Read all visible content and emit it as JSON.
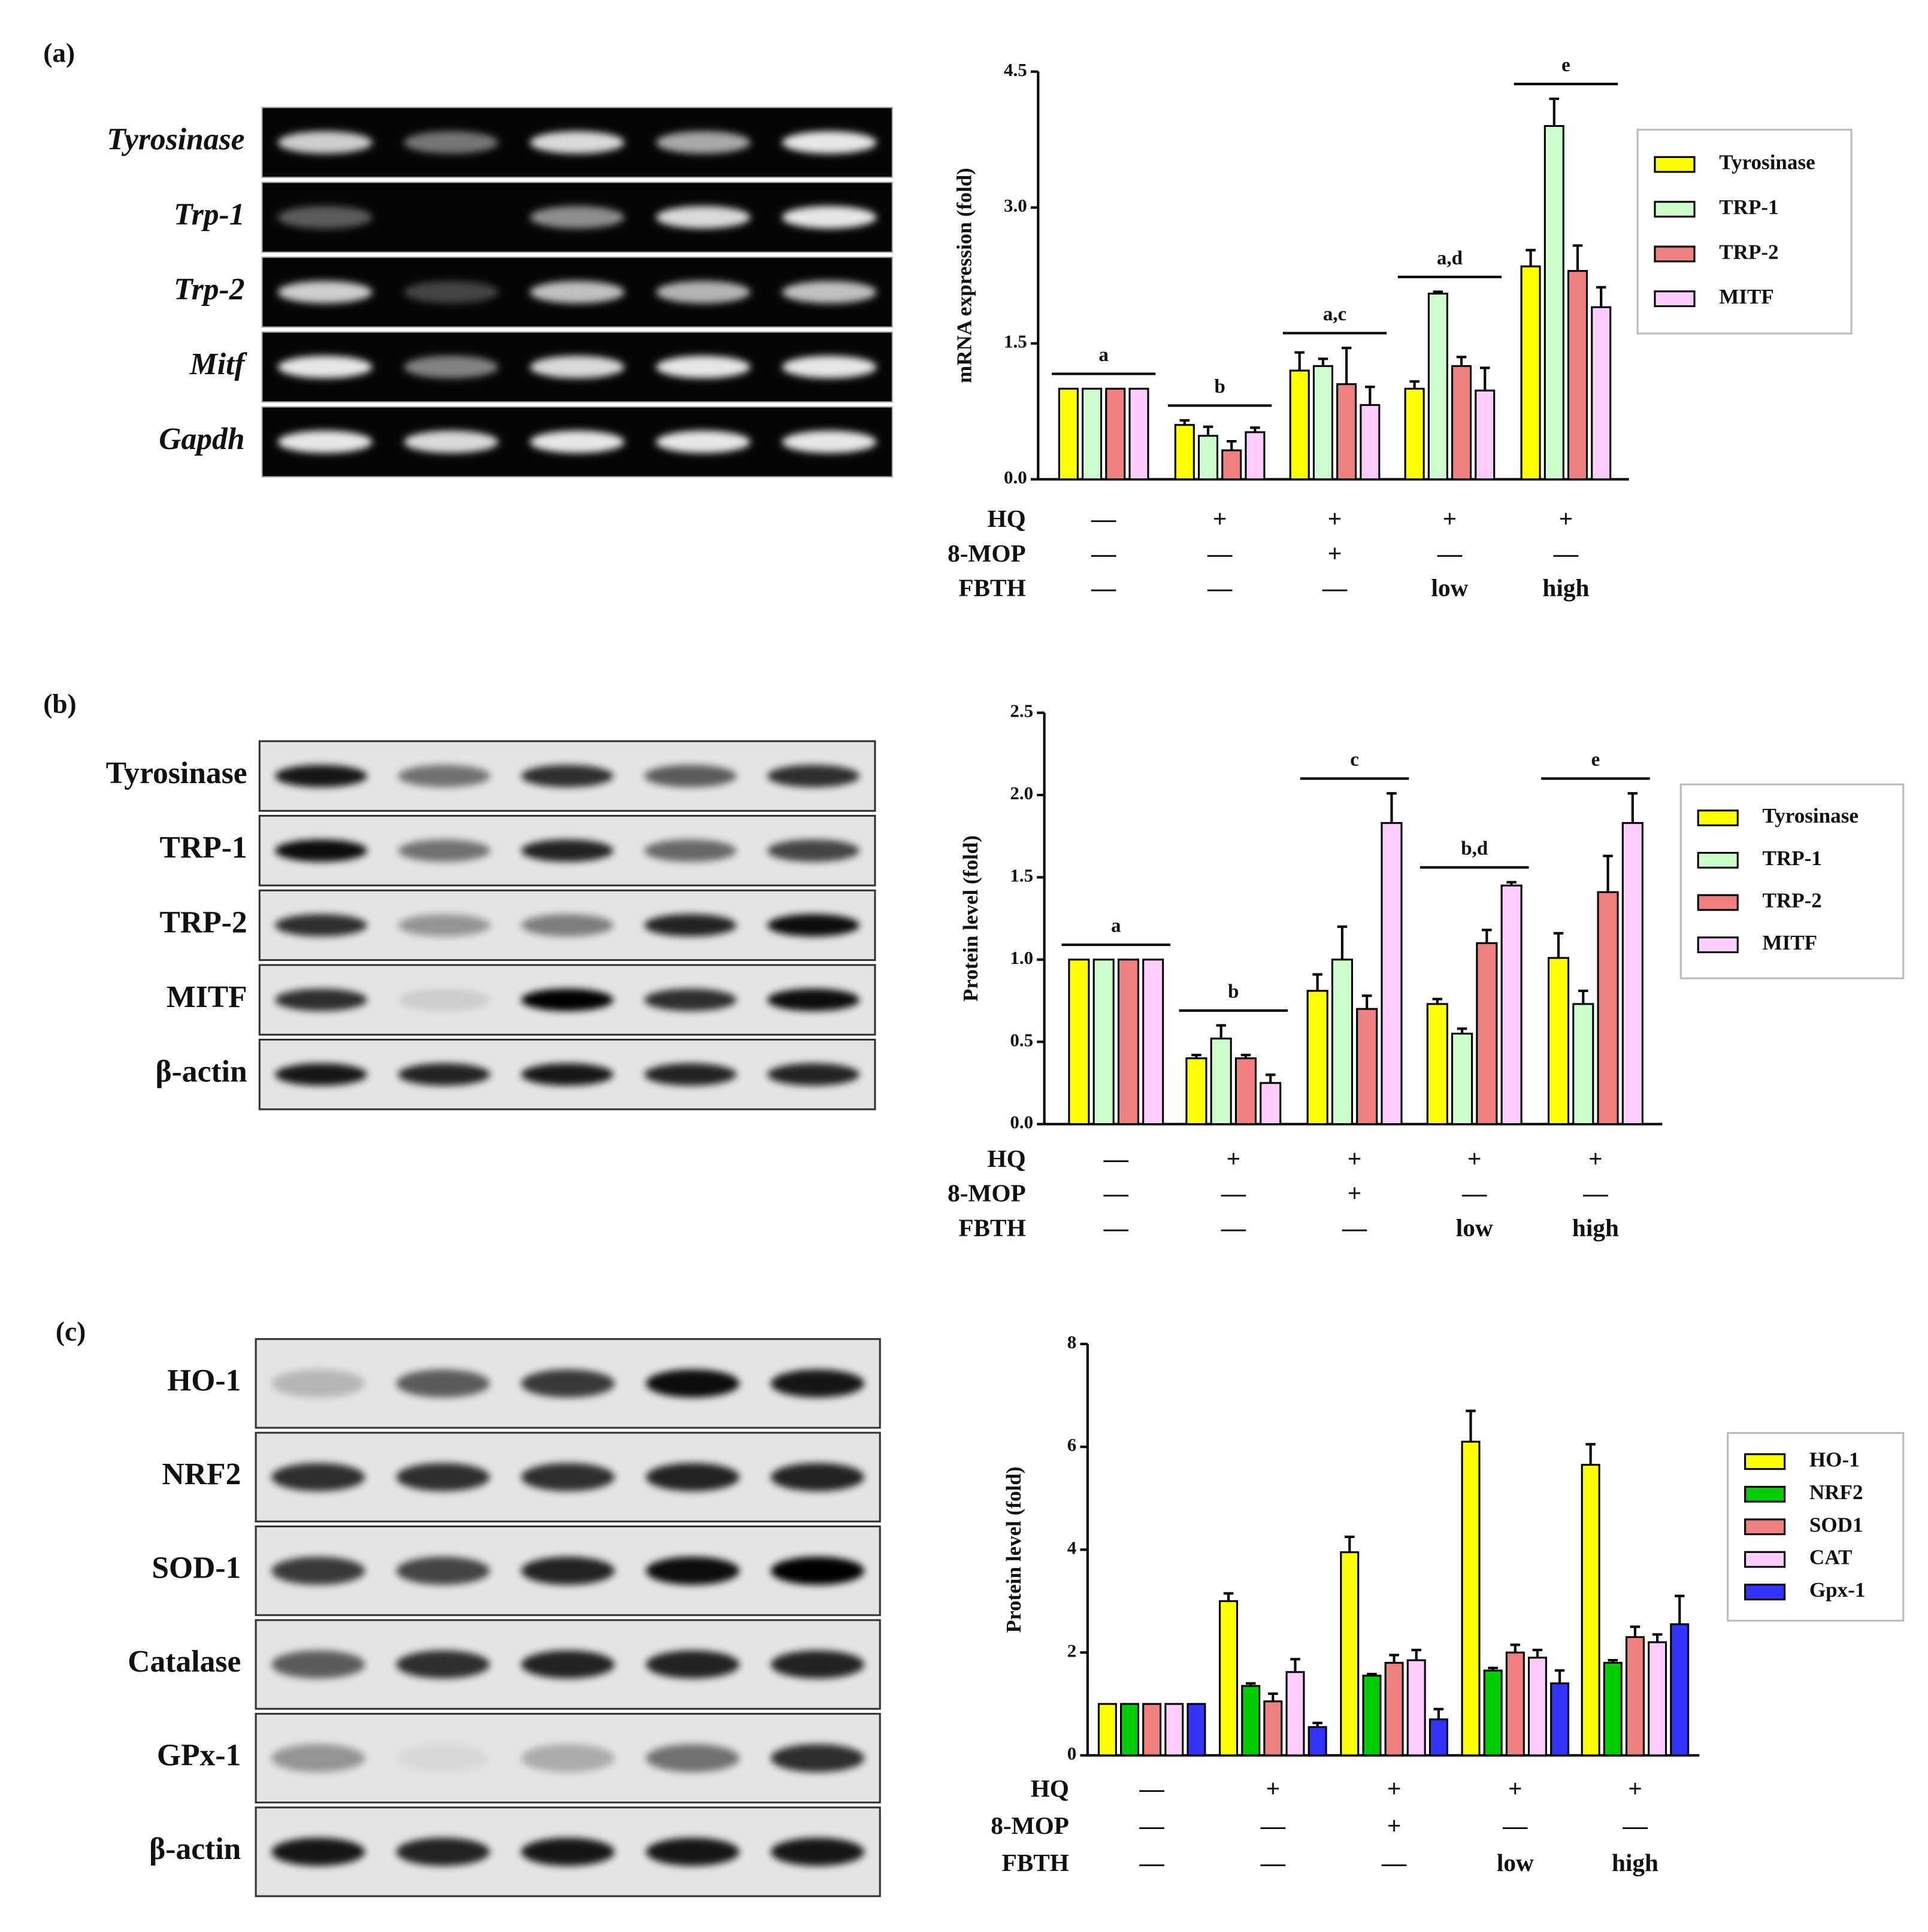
{
  "panels": [
    {
      "label": "(a)",
      "blots": [
        "Tyrosinase",
        "Trp-1",
        "Trp-2",
        "Mitf",
        "Gapdh"
      ]
    },
    {
      "label": "(b)",
      "blots": [
        "Tyrosinase",
        "TRP-1",
        "TRP-2",
        "MITF",
        "β-actin"
      ]
    },
    {
      "label": "(c)",
      "blots": [
        "HO-1",
        "NRF2",
        "SOD-1",
        "Catalase",
        "GPx-1",
        "β-actin"
      ]
    }
  ],
  "chart_data": [
    {
      "type": "bar",
      "y_label": "mRNA expression (fold)",
      "ylim": [
        0,
        4.5
      ],
      "yticks": [
        {
          "value": 0,
          "label": "0.0"
        },
        1.5,
        {
          "value": 3,
          "label": "3.0"
        },
        4.5
      ],
      "conditions": [
        {
          "name": "HQ",
          "values": [
            "—",
            "+",
            "+",
            "+",
            "+"
          ]
        },
        {
          "name": "8-MOP",
          "values": [
            "—",
            "—",
            "+",
            "—",
            "—"
          ]
        },
        {
          "name": "FBTH",
          "values": [
            "—",
            "—",
            "—",
            "low",
            "high"
          ]
        }
      ],
      "annotations": [
        "a",
        "b",
        "a,c",
        "a,d",
        "e"
      ],
      "series": [
        {
          "name": "Tyrosinase",
          "color": "#ffff00",
          "values": [
            1,
            0.6,
            1.2,
            1.0,
            2.35
          ],
          "errors": [
            0,
            0.05,
            0.2,
            0.08,
            0.18
          ]
        },
        {
          "name": "TRP-1",
          "color": "#ccffcc",
          "values": [
            1,
            0.48,
            1.25,
            2.05,
            3.9
          ],
          "errors": [
            0,
            0.1,
            0.08,
            0.02,
            0.3
          ]
        },
        {
          "name": "TRP-2",
          "color": "#f08080",
          "values": [
            1,
            0.32,
            1.05,
            1.25,
            2.3
          ],
          "errors": [
            0,
            0.1,
            0.4,
            0.1,
            0.28
          ]
        },
        {
          "name": "MITF",
          "color": "#ffccff",
          "values": [
            1,
            0.52,
            0.82,
            0.98,
            1.9
          ],
          "errors": [
            0,
            0.05,
            0.2,
            0.25,
            0.22
          ]
        }
      ]
    },
    {
      "type": "bar",
      "y_label": "Protein level (fold)",
      "ylim": [
        0,
        2.5
      ],
      "yticks": [
        {
          "value": 0,
          "label": "0.0"
        },
        0.5,
        {
          "value": 1,
          "label": "1.0"
        },
        1.5,
        {
          "value": 2,
          "label": "2.0"
        },
        2.5
      ],
      "conditions": [
        {
          "name": "HQ",
          "values": [
            "—",
            "+",
            "+",
            "+",
            "+"
          ]
        },
        {
          "name": "8-MOP",
          "values": [
            "—",
            "—",
            "+",
            "—",
            "—"
          ]
        },
        {
          "name": "FBTH",
          "values": [
            "—",
            "—",
            "—",
            "low",
            "high"
          ]
        }
      ],
      "annotations": [
        "a",
        "b",
        "c",
        "b,d",
        "e"
      ],
      "series": [
        {
          "name": "Tyrosinase",
          "color": "#ffff00",
          "values": [
            1,
            0.4,
            0.81,
            0.73,
            1.01
          ],
          "errors": [
            0,
            0.02,
            0.1,
            0.03,
            0.15
          ]
        },
        {
          "name": "TRP-1",
          "color": "#ccffcc",
          "values": [
            1,
            0.52,
            1.0,
            0.55,
            0.73
          ],
          "errors": [
            0,
            0.08,
            0.2,
            0.03,
            0.08
          ]
        },
        {
          "name": "TRP-2",
          "color": "#f08080",
          "values": [
            1,
            0.4,
            0.7,
            1.1,
            1.41
          ],
          "errors": [
            0,
            0.02,
            0.08,
            0.08,
            0.22
          ]
        },
        {
          "name": "MITF",
          "color": "#ffccff",
          "values": [
            1,
            0.25,
            1.83,
            1.45,
            1.83
          ],
          "errors": [
            0,
            0.05,
            0.18,
            0.02,
            0.18
          ]
        }
      ]
    },
    {
      "type": "bar",
      "y_label": "Protein level (fold)",
      "ylim": [
        0,
        8
      ],
      "yticks": [
        0,
        2,
        4,
        6,
        8
      ],
      "conditions": [
        {
          "name": "HQ",
          "values": [
            "—",
            "+",
            "+",
            "+",
            "+"
          ]
        },
        {
          "name": "8-MOP",
          "values": [
            "—",
            "—",
            "+",
            "—",
            "—"
          ]
        },
        {
          "name": "FBTH",
          "values": [
            "—",
            "—",
            "—",
            "low",
            "high"
          ]
        }
      ],
      "series": [
        {
          "name": "HO-1",
          "color": "#ffff00",
          "values": [
            1,
            3.0,
            3.95,
            6.1,
            5.65
          ],
          "errors": [
            0,
            0.15,
            0.3,
            0.6,
            0.4
          ]
        },
        {
          "name": "NRF2",
          "color": "#00cc00",
          "values": [
            1,
            1.35,
            1.55,
            1.65,
            1.8
          ],
          "errors": [
            0,
            0.05,
            0.03,
            0.05,
            0.05
          ]
        },
        {
          "name": "SOD1",
          "color": "#f08080",
          "values": [
            1,
            1.05,
            1.8,
            2.0,
            2.3
          ],
          "errors": [
            0,
            0.15,
            0.15,
            0.15,
            0.2
          ]
        },
        {
          "name": "CAT",
          "color": "#ffccff",
          "values": [
            1,
            1.62,
            1.85,
            1.9,
            2.2
          ],
          "errors": [
            0,
            0.25,
            0.2,
            0.15,
            0.15
          ]
        },
        {
          "name": "Gpx-1",
          "color": "#3333ff",
          "values": [
            1,
            0.55,
            0.7,
            1.4,
            2.55
          ],
          "errors": [
            0,
            0.08,
            0.2,
            0.25,
            0.55
          ]
        }
      ]
    }
  ]
}
